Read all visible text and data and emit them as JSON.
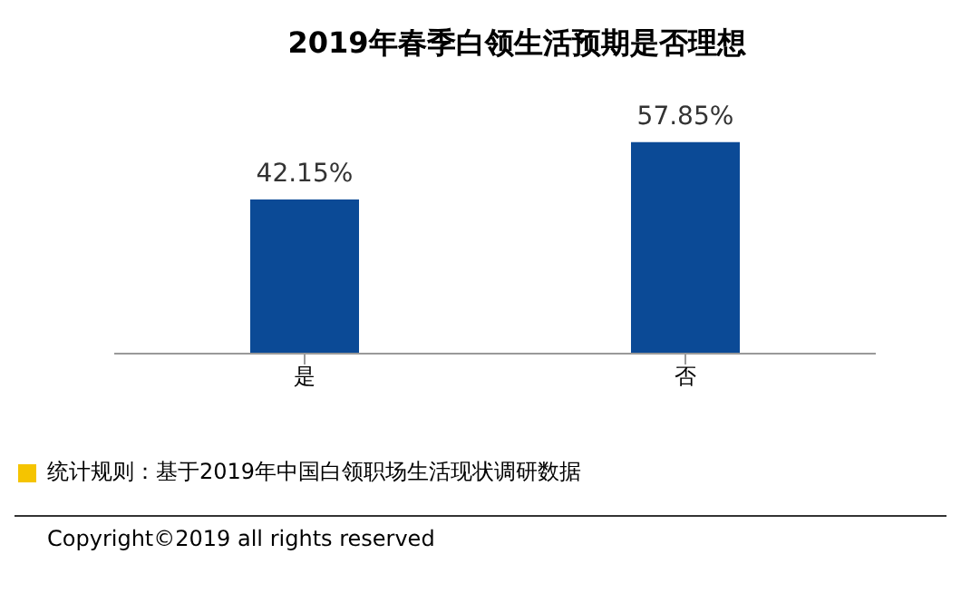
{
  "chart_data": {
    "type": "bar",
    "title": "2019年春季白领生活预期是否理想",
    "categories": [
      "是",
      "否"
    ],
    "values": [
      42.15,
      57.85
    ],
    "value_labels": [
      "42.15%",
      "57.85%"
    ],
    "color": "#0b4a96",
    "grid": false,
    "annotations": [
      "统计规则：基于2019年中国白领职场生活现状调研数据",
      "Copyright©2019 all rights reserved"
    ]
  }
}
